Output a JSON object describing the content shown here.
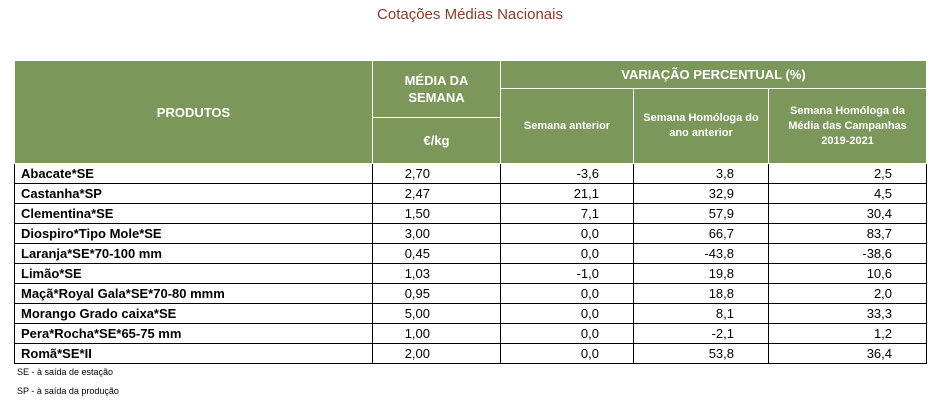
{
  "title": "Cotações Médias Nacionais",
  "header": {
    "produtos": "PRODUTOS",
    "media_semana": "MÉDIA DA SEMANA",
    "unit": "€/kg",
    "variacao": "VARIAÇÃO PERCENTUAL (%)",
    "semana_anterior": "Semana anterior",
    "semana_homologa": "Semana Homóloga do ano anterior",
    "semana_homologa_media": "Semana Homóloga da Média das Campanhas 2019-2021"
  },
  "rows": [
    {
      "produto": "Abacate*SE",
      "media": "2,70",
      "sem_ant": "-3,6",
      "hom_ano": "3,8",
      "hom_media": "2,5"
    },
    {
      "produto": "Castanha*SP",
      "media": "2,47",
      "sem_ant": "21,1",
      "hom_ano": "32,9",
      "hom_media": "4,5"
    },
    {
      "produto": "Clementina*SE",
      "media": "1,50",
      "sem_ant": "7,1",
      "hom_ano": "57,9",
      "hom_media": "30,4"
    },
    {
      "produto": "Diospiro*Tipo Mole*SE",
      "media": "3,00",
      "sem_ant": "0,0",
      "hom_ano": "66,7",
      "hom_media": "83,7"
    },
    {
      "produto": "Laranja*SE*70-100 mm",
      "media": "0,45",
      "sem_ant": "0,0",
      "hom_ano": "-43,8",
      "hom_media": "-38,6"
    },
    {
      "produto": "Limão*SE",
      "media": "1,03",
      "sem_ant": "-1,0",
      "hom_ano": "19,8",
      "hom_media": "10,6"
    },
    {
      "produto": "Maçã*Royal Gala*SE*70-80 mmm",
      "media": "0,95",
      "sem_ant": "0,0",
      "hom_ano": "18,8",
      "hom_media": "2,0"
    },
    {
      "produto": "Morango Grado caixa*SE",
      "media": "5,00",
      "sem_ant": "0,0",
      "hom_ano": "8,1",
      "hom_media": "33,3"
    },
    {
      "produto": "Pera*Rocha*SE*65-75 mm",
      "media": "1,00",
      "sem_ant": "0,0",
      "hom_ano": "-2,1",
      "hom_media": "1,2"
    },
    {
      "produto": "Romã*SE*II",
      "media": "2,00",
      "sem_ant": "0,0",
      "hom_ano": "53,8",
      "hom_media": "36,4"
    }
  ],
  "footnotes": {
    "se": "SE - à saída de estação",
    "sp": "SP - à saída da produção"
  }
}
